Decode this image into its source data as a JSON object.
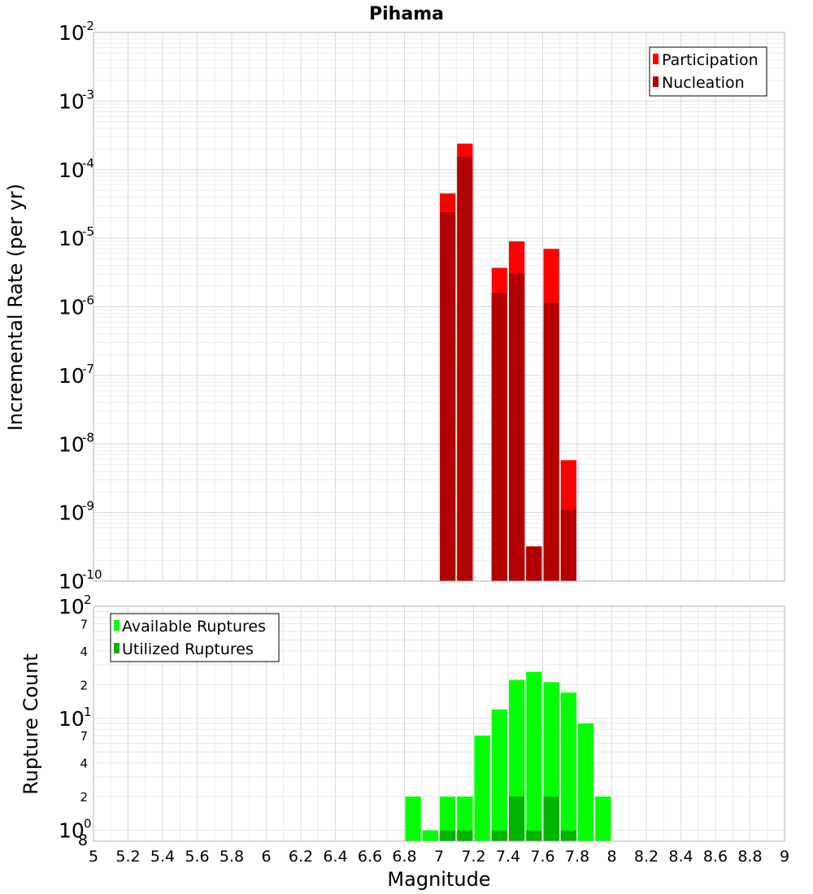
{
  "chart_data": [
    {
      "type": "bar",
      "title": "Pihama",
      "xlabel": "Magnitude",
      "ylabel": "Incremental Rate (per yr)",
      "xlim": [
        5,
        9
      ],
      "ylim": [
        1e-10,
        0.01
      ],
      "yscale": "log",
      "bin_width": 0.1,
      "legend_position": "top-right",
      "series": [
        {
          "name": "Participation",
          "color": "#ff0000",
          "x": [
            7.05,
            7.15,
            7.35,
            7.45,
            7.55,
            7.65,
            7.75
          ],
          "values": [
            4.5e-05,
            0.00024,
            3.7e-06,
            9e-06,
            3.2e-10,
            7e-06,
            5.8e-09
          ]
        },
        {
          "name": "Nucleation",
          "color": "#b30000",
          "x": [
            7.05,
            7.15,
            7.35,
            7.45,
            7.55,
            7.65,
            7.75
          ],
          "values": [
            2.4e-05,
            0.000155,
            1.6e-06,
            3.1e-06,
            3.2e-10,
            1.15e-06,
            1.1e-09
          ]
        }
      ]
    },
    {
      "type": "bar",
      "title": "",
      "xlabel": "Magnitude",
      "ylabel": "Rupture Count",
      "xlim": [
        5,
        9
      ],
      "ylim": [
        0.8,
        100
      ],
      "yscale": "log",
      "bin_width": 0.1,
      "legend_position": "top-left",
      "series": [
        {
          "name": "Available Ruptures",
          "color": "#00ff00",
          "x": [
            6.85,
            6.95,
            7.05,
            7.15,
            7.25,
            7.35,
            7.45,
            7.55,
            7.65,
            7.75,
            7.85,
            7.95
          ],
          "values": [
            2,
            1,
            2,
            2,
            7,
            12,
            22,
            26,
            21,
            17,
            9,
            2
          ]
        },
        {
          "name": "Utilized Ruptures",
          "color": "#00b300",
          "x": [
            7.05,
            7.15,
            7.35,
            7.45,
            7.55,
            7.65,
            7.75
          ],
          "values": [
            1,
            1,
            1,
            2,
            1,
            2,
            1
          ]
        }
      ]
    }
  ],
  "x_ticks": [
    "5",
    "5.2",
    "5.4",
    "5.6",
    "5.8",
    "6",
    "6.2",
    "6.4",
    "6.6",
    "6.8",
    "7",
    "7.2",
    "7.4",
    "7.6",
    "7.8",
    "8",
    "8.2",
    "8.4",
    "8.6",
    "8.8",
    "9"
  ],
  "top_y_ticks": [
    {
      "base": "10",
      "exp": "-2"
    },
    {
      "base": "10",
      "exp": "-3"
    },
    {
      "base": "10",
      "exp": "-4"
    },
    {
      "base": "10",
      "exp": "-5"
    },
    {
      "base": "10",
      "exp": "-6"
    },
    {
      "base": "10",
      "exp": "-7"
    },
    {
      "base": "10",
      "exp": "-8"
    },
    {
      "base": "10",
      "exp": "-9"
    },
    {
      "base": "10",
      "exp": "-10"
    }
  ],
  "bottom_y_major_ticks": [
    {
      "base": "10",
      "exp": "2"
    },
    {
      "base": "10",
      "exp": "1"
    },
    {
      "base": "10",
      "exp": "0"
    }
  ],
  "bottom_y_minor_ticks": [
    "7",
    "4",
    "2",
    "7",
    "4",
    "2",
    "8"
  ]
}
